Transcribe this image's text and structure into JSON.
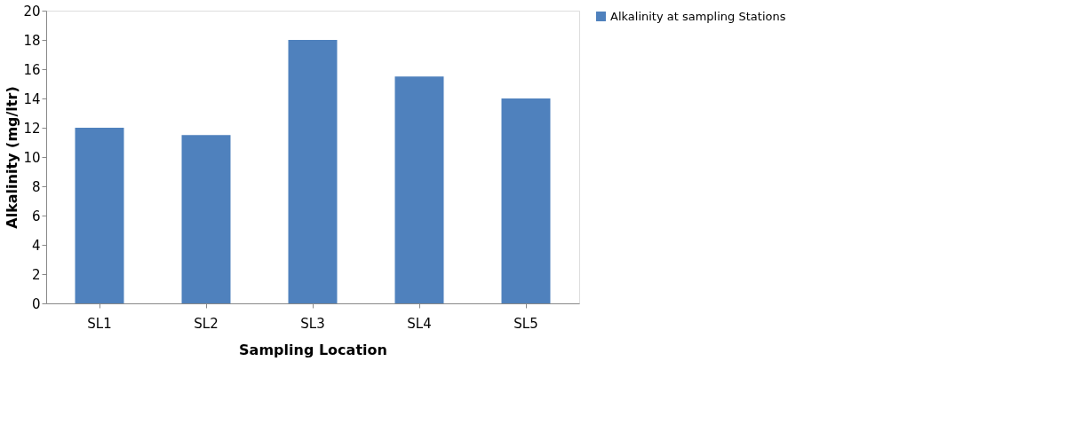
{
  "chart_data": {
    "type": "bar",
    "xlabel": "Sampling Location",
    "ylabel": "Alkalinity (mg/ltr)",
    "categories": [
      "SL1",
      "SL2",
      "SL3",
      "SL4",
      "SL5"
    ],
    "series": [
      {
        "name": "Alkalinity at sampling Stations",
        "color": "#4f81bd",
        "values": [
          12,
          11.5,
          18,
          15.5,
          14
        ]
      }
    ],
    "ylim": [
      0,
      20
    ],
    "yticks": [
      0,
      2,
      4,
      6,
      8,
      10,
      12,
      14,
      16,
      18,
      20
    ],
    "grid": false,
    "legend": "right"
  }
}
